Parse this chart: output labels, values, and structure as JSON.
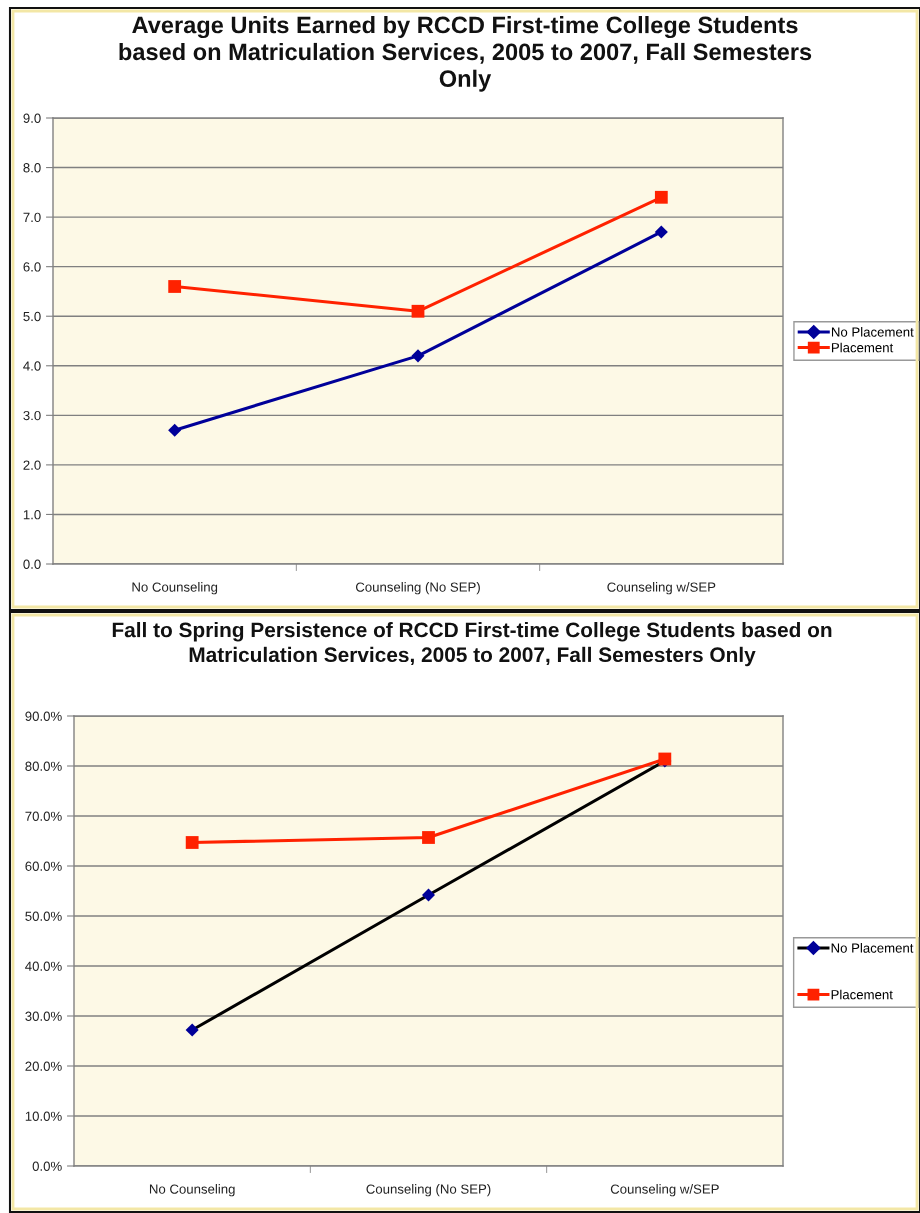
{
  "chart_data": [
    {
      "type": "line",
      "title": "Average Units Earned by RCCD First-time College Students\nbased on Matriculation Services, 2005 to 2007, Fall Semesters\nOnly",
      "categories": [
        "No Counseling",
        "Counseling (No SEP)",
        "Counseling w/SEP"
      ],
      "series": [
        {
          "name": "No Placement",
          "color": "#000099",
          "marker": "diamond",
          "values": [
            2.7,
            4.2,
            6.7
          ]
        },
        {
          "name": "Placement",
          "color": "#ff2200",
          "marker": "square",
          "values": [
            5.6,
            5.1,
            7.4
          ]
        }
      ],
      "ylim": [
        0,
        9
      ],
      "yticks": [
        {
          "value": 0,
          "label": "0.0"
        },
        {
          "value": 1,
          "label": "1.0"
        },
        {
          "value": 2,
          "label": "2.0"
        },
        {
          "value": 3,
          "label": "3.0"
        },
        {
          "value": 4,
          "label": "4.0"
        },
        {
          "value": 5,
          "label": "5.0"
        },
        {
          "value": 6,
          "label": "6.0"
        },
        {
          "value": 7,
          "label": "7.0"
        },
        {
          "value": 8,
          "label": "8.0"
        },
        {
          "value": 9,
          "label": "9.0"
        }
      ],
      "grid": "y",
      "legend": "right",
      "line_style": "solid"
    },
    {
      "type": "line",
      "title": "Fall to Spring Persistence of RCCD First-time College Students based on\nMatriculation Services, 2005 to 2007, Fall Semesters Only",
      "categories": [
        "No Counseling",
        "Counseling (No SEP)",
        "Counseling w/SEP"
      ],
      "series": [
        {
          "name": "No Placement",
          "color": "#000000",
          "colors": [
            "#000099",
            "#000099",
            "#000099"
          ],
          "marker": "diamond",
          "values": [
            27.2,
            54.2,
            81.0
          ]
        },
        {
          "name": "Placement",
          "color": "#ff2200",
          "marker": "square",
          "values": [
            64.7,
            65.7,
            81.4
          ]
        }
      ],
      "ylim": [
        0,
        90
      ],
      "yticks": [
        {
          "value": 0,
          "label": "0.0%"
        },
        {
          "value": 10,
          "label": "10.0%"
        },
        {
          "value": 20,
          "label": "20.0%"
        },
        {
          "value": 30,
          "label": "30.0%"
        },
        {
          "value": 40,
          "label": "40.0%"
        },
        {
          "value": 50,
          "label": "50.0%"
        },
        {
          "value": 60,
          "label": "60.0%"
        },
        {
          "value": 70,
          "label": "70.0%"
        },
        {
          "value": 80,
          "label": "80.0%"
        },
        {
          "value": 90,
          "label": "90.0%"
        }
      ],
      "grid": "y",
      "legend": "right",
      "line_style": "solid"
    }
  ]
}
